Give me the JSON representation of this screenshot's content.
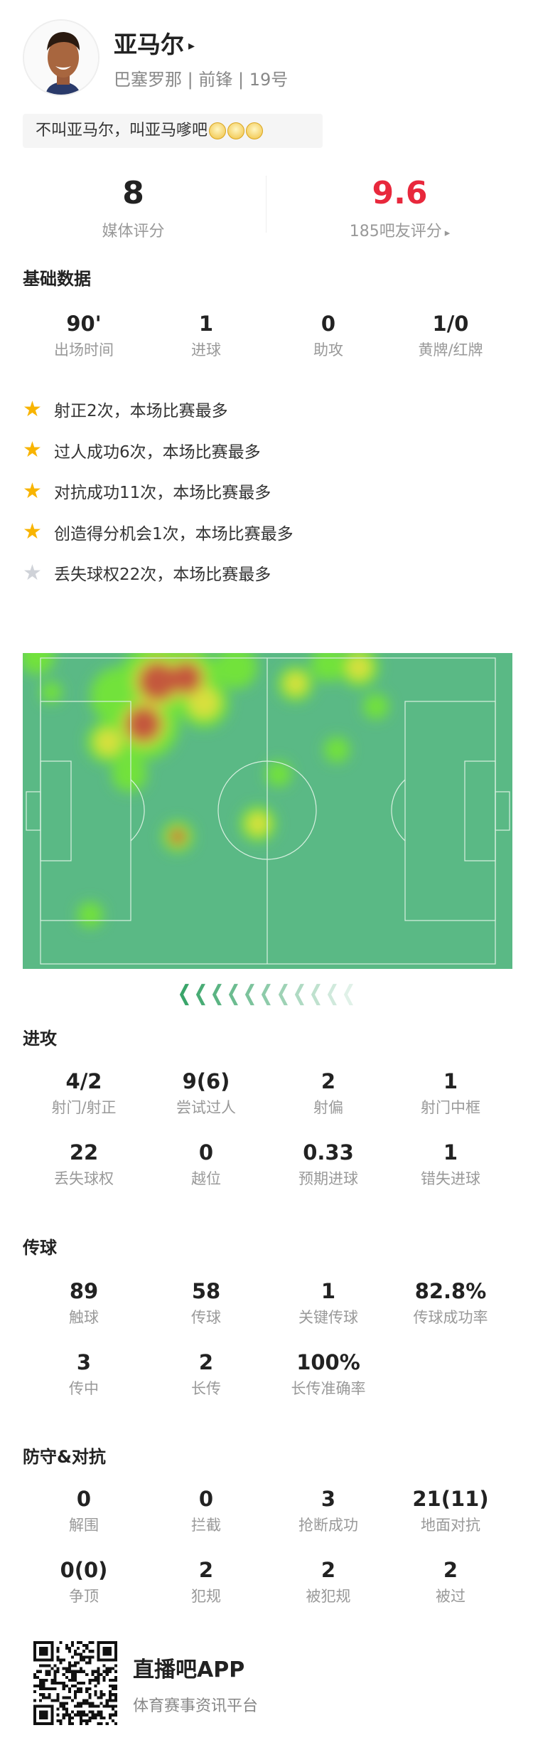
{
  "player": {
    "name": "亚马尔",
    "name_arrow": "▸",
    "team": "巴塞罗那",
    "position": "前锋",
    "number": "19号",
    "separator": "|"
  },
  "quote": {
    "text": "不叫亚马尔，叫亚马嗲吧",
    "emoji_icon": "cat-emoji-icon",
    "emoji_count": 3
  },
  "ratings": {
    "media": {
      "value": "8",
      "label": "媒体评分"
    },
    "fans": {
      "value": "9.6",
      "label": "185吧友评分",
      "arrow": "▸",
      "color": "#e8283c"
    }
  },
  "basic": {
    "title": "基础数据",
    "stats": [
      {
        "value": "90'",
        "label": "出场时间"
      },
      {
        "value": "1",
        "label": "进球"
      },
      {
        "value": "0",
        "label": "助攻"
      },
      {
        "value": "1/0",
        "label": "黄牌/红牌"
      }
    ]
  },
  "highlights": [
    {
      "text": "射正2次，本场比赛最多",
      "star": "gold"
    },
    {
      "text": "过人成功6次，本场比赛最多",
      "star": "gold"
    },
    {
      "text": "对抗成功11次，本场比赛最多",
      "star": "gold"
    },
    {
      "text": "创造得分机会1次，本场比赛最多",
      "star": "gold"
    },
    {
      "text": "丢失球权22次，本场比赛最多",
      "star": "grey"
    }
  ],
  "heatmap": {
    "pitch_color": "#5ab985",
    "attack_direction": "left",
    "direction_icon": "chevron-left-icon"
  },
  "attack": {
    "title": "进攻",
    "stats": [
      {
        "value": "4/2",
        "label": "射门/射正"
      },
      {
        "value": "9(6)",
        "label": "尝试过人"
      },
      {
        "value": "2",
        "label": "射偏"
      },
      {
        "value": "1",
        "label": "射门中框"
      },
      {
        "value": "22",
        "label": "丢失球权"
      },
      {
        "value": "0",
        "label": "越位"
      },
      {
        "value": "0.33",
        "label": "预期进球"
      },
      {
        "value": "1",
        "label": "错失进球"
      }
    ]
  },
  "passing": {
    "title": "传球",
    "stats": [
      {
        "value": "89",
        "label": "触球"
      },
      {
        "value": "58",
        "label": "传球"
      },
      {
        "value": "1",
        "label": "关键传球"
      },
      {
        "value": "82.8%",
        "label": "传球成功率"
      },
      {
        "value": "3",
        "label": "传中"
      },
      {
        "value": "2",
        "label": "长传"
      },
      {
        "value": "100%",
        "label": "长传准确率"
      }
    ]
  },
  "defense": {
    "title": "防守&对抗",
    "stats": [
      {
        "value": "0",
        "label": "解围"
      },
      {
        "value": "0",
        "label": "拦截"
      },
      {
        "value": "3",
        "label": "抢断成功"
      },
      {
        "value": "21(11)",
        "label": "地面对抗"
      },
      {
        "value": "0(0)",
        "label": "争顶"
      },
      {
        "value": "2",
        "label": "犯规"
      },
      {
        "value": "2",
        "label": "被犯规"
      },
      {
        "value": "2",
        "label": "被过"
      }
    ]
  },
  "footer": {
    "app_name": "直播吧APP",
    "tagline": "体育赛事资讯平台"
  }
}
